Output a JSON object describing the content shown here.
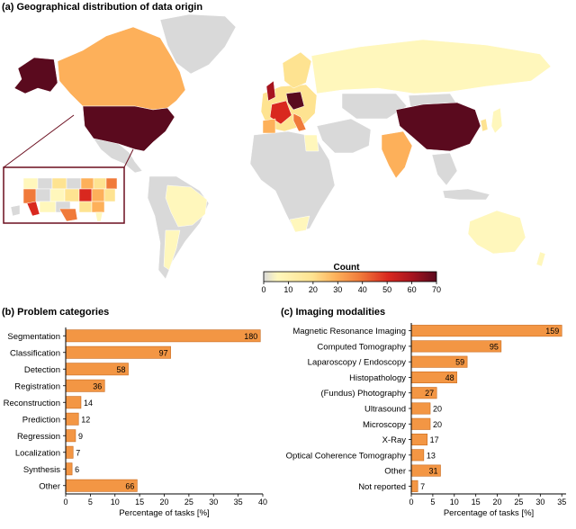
{
  "panels": {
    "a_title": "(a) Geographical distribution of data origin",
    "b_title": "(b) Problem categories",
    "c_title": "(c) Imaging modalities"
  },
  "colorbar": {
    "title": "Count",
    "ticks": [
      "0",
      "10",
      "20",
      "30",
      "40",
      "50",
      "60",
      "70"
    ],
    "stops": [
      "#d9d9d9",
      "#fff7bc",
      "#fee391",
      "#fdb05a",
      "#f07a3a",
      "#d9281f",
      "#a6141f",
      "#5a0a1e"
    ]
  },
  "colors": {
    "bar": "#f39644",
    "bar_stroke": "#c86a1d",
    "land_none": "#d9d9d9",
    "inset_border": "#6b0e1f"
  },
  "chart_data": [
    {
      "type": "bar",
      "orientation": "horizontal",
      "title": "(b) Problem categories",
      "categories": [
        "Segmentation",
        "Classification",
        "Detection",
        "Registration",
        "Reconstruction",
        "Prediction",
        "Regression",
        "Localization",
        "Synthesis",
        "Other"
      ],
      "values": [
        39.5,
        21.3,
        12.7,
        7.9,
        3.1,
        2.6,
        2.0,
        1.5,
        1.3,
        14.5
      ],
      "labels": [
        "180",
        "97",
        "58",
        "36",
        "14",
        "12",
        "9",
        "7",
        "6",
        "66"
      ],
      "xlabel": "Percentage of tasks [%]",
      "xlim": [
        0,
        40
      ],
      "xticks": [
        "0",
        "5",
        "10",
        "15",
        "20",
        "25",
        "30",
        "35",
        "40"
      ]
    },
    {
      "type": "bar",
      "orientation": "horizontal",
      "title": "(c) Imaging modalities",
      "categories": [
        "Magnetic Resonance Imaging",
        "Computed Tomography",
        "Laparoscopy / Endoscopy",
        "Histopathology",
        "(Fundus) Photography",
        "Ultrasound",
        "Microscopy",
        "X-Ray",
        "Optical Coherence Tomography",
        "Other",
        "Not reported"
      ],
      "values": [
        35.0,
        20.9,
        13.0,
        10.6,
        5.9,
        4.4,
        4.4,
        3.7,
        2.9,
        6.8,
        1.5
      ],
      "labels": [
        "159",
        "95",
        "59",
        "48",
        "27",
        "20",
        "20",
        "17",
        "13",
        "31",
        "7"
      ],
      "xlabel": "Percentage of tasks [%]",
      "xlim": [
        0,
        36
      ],
      "xticks": [
        "0",
        "5",
        "10",
        "15",
        "20",
        "25",
        "30",
        "35"
      ]
    },
    {
      "type": "choropleth",
      "title": "(a) Geographical distribution of data origin",
      "legend_title": "Count",
      "range": [
        0,
        70
      ],
      "regions": [
        {
          "name": "USA",
          "level": "70"
        },
        {
          "name": "Alaska",
          "level": "70"
        },
        {
          "name": "China",
          "level": "70"
        },
        {
          "name": "Germany",
          "level": "60"
        },
        {
          "name": "France",
          "level": "40"
        },
        {
          "name": "Netherlands",
          "level": "70"
        },
        {
          "name": "United Kingdom",
          "level": "60"
        },
        {
          "name": "Switzerland",
          "level": "40"
        },
        {
          "name": "Canada",
          "level": "25"
        },
        {
          "name": "India",
          "level": "25"
        },
        {
          "name": "Spain",
          "level": "20"
        },
        {
          "name": "Italy",
          "level": "20"
        },
        {
          "name": "Scandinavia",
          "level": "10"
        },
        {
          "name": "Russia",
          "level": "5"
        },
        {
          "name": "Brazil",
          "level": "5"
        },
        {
          "name": "Australia",
          "level": "5"
        },
        {
          "name": "South Korea",
          "level": "20"
        },
        {
          "name": "Japan",
          "level": "15"
        }
      ]
    }
  ]
}
